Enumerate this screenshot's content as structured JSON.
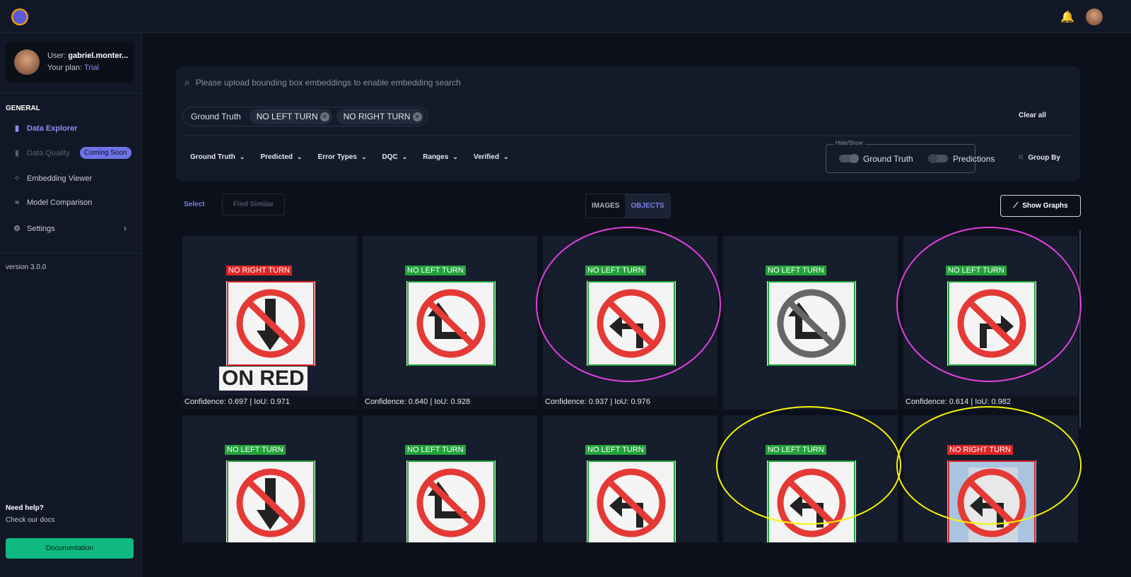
{
  "topbar": {
    "logo": "app-logo",
    "icons": [
      "bell-icon",
      "user-avatar"
    ]
  },
  "sidebar": {
    "user_prefix": "User:",
    "user_name": "gabriel.monter...",
    "plan_prefix": "Your plan:",
    "plan": "Trial",
    "section": "GENERAL",
    "items": [
      {
        "label": "Data Explorer",
        "icon": "bar-chart-icon",
        "state": "active"
      },
      {
        "label": "Data Quality",
        "icon": "bar-chart-icon",
        "state": "disabled",
        "badge": "Coming Soon"
      },
      {
        "label": "Embedding Viewer",
        "icon": "scatter-icon",
        "state": "normal"
      },
      {
        "label": "Model Comparison",
        "icon": "wave-icon",
        "state": "normal"
      },
      {
        "label": "Settings",
        "icon": "gear-icon",
        "state": "normal"
      }
    ],
    "version": "version 3.0.0",
    "help_title": "Need help?",
    "help_sub": "Check our docs",
    "doc_button": "Documentation"
  },
  "filters": {
    "search_placeholder": "Please upload bounding box embeddings to enable embedding search",
    "chip_group": "Ground Truth",
    "chips": [
      "NO LEFT TURN",
      "NO RIGHT TURN"
    ],
    "clear_all": "Clear all",
    "dropdowns": [
      "Ground Truth",
      "Predicted",
      "Error Types",
      "DQC",
      "Ranges",
      "Verified"
    ],
    "hide_show": "Hide/Show",
    "toggles": [
      {
        "label": "Ground Truth",
        "on": true
      },
      {
        "label": "Predictions",
        "on": false
      }
    ],
    "group_by": "Group By"
  },
  "toolbar": {
    "select": "Select",
    "find_similar": "Find Similar",
    "tabs": [
      "IMAGES",
      "OBJECTS"
    ],
    "active_tab": "OBJECTS",
    "show_graphs": "Show Graphs"
  },
  "colors": {
    "accent": "#7b80e8",
    "gt_box": "#22a33a",
    "pred_box": "#dc2626",
    "doc_button": "#10b981",
    "highlight_magenta": "#e040e0",
    "highlight_yellow": "#f5f500"
  },
  "cards": [
    {
      "label": "NO RIGHT TURN",
      "color": "red",
      "caption": "Confidence: 0.697 | IoU: 0.971",
      "arrow": "down",
      "extra": "ON RED"
    },
    {
      "label": "NO LEFT TURN",
      "color": "green",
      "caption": "Confidence: 0.640 | IoU: 0.928",
      "arrow": "up-left"
    },
    {
      "label": "NO LEFT TURN",
      "color": "green",
      "caption": "Confidence: 0.937 | IoU: 0.976",
      "arrow": "left",
      "highlight": "magenta"
    },
    {
      "label": "NO LEFT TURN",
      "color": "green",
      "caption": "",
      "arrow": "up-left",
      "gray": true
    },
    {
      "label": "NO LEFT TURN",
      "color": "green",
      "caption": "Confidence: 0.614 | IoU: 0.982",
      "arrow": "right",
      "highlight": "magenta"
    },
    {
      "label": "NO LEFT TURN",
      "color": "green",
      "caption": "",
      "arrow": "down"
    },
    {
      "label": "NO LEFT TURN",
      "color": "green",
      "caption": "",
      "arrow": "up-left"
    },
    {
      "label": "NO LEFT TURN",
      "color": "green",
      "caption": "",
      "arrow": "left"
    },
    {
      "label": "NO LEFT TURN",
      "color": "green",
      "caption": "",
      "arrow": "left",
      "highlight": "yellow"
    },
    {
      "label": "NO RIGHT TURN",
      "color": "red",
      "caption": "",
      "arrow": "left",
      "sky": true,
      "highlight": "yellow"
    }
  ]
}
